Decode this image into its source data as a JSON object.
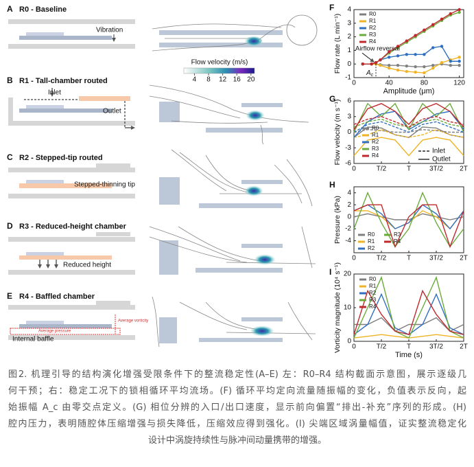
{
  "panels": [
    {
      "letter": "A",
      "title": "R0 - Baseline",
      "notes": [
        "Vibration"
      ]
    },
    {
      "letter": "B",
      "title": "R1 - Tall-chamber routed",
      "notes": [
        "Inlet",
        "Outlet"
      ]
    },
    {
      "letter": "C",
      "title": "R2 - Stepped-tip routed",
      "notes": [
        "Stepped-thinning tip"
      ]
    },
    {
      "letter": "D",
      "title": "R3 - Reduced-height chamber",
      "notes": [
        "Reduced height"
      ]
    },
    {
      "letter": "E",
      "title": "R4 - Baffled chamber",
      "notes": [
        "Average vorticity",
        "Average pressure",
        "Internal baffle"
      ]
    }
  ],
  "colorbar": {
    "label": "Flow velocity (m/s)",
    "lim": [
      1,
      21
    ],
    "ticks": [
      4,
      8,
      12,
      16,
      20
    ]
  },
  "chart_data": [
    {
      "type": "line",
      "panel": "F",
      "x_label": "Amplitude (μm)",
      "y_label": "Flow rate (L min⁻¹)",
      "x": [
        10,
        20,
        25,
        30,
        40,
        50,
        60,
        70,
        80,
        90,
        100,
        110,
        120
      ],
      "xlim": [
        0,
        125
      ],
      "xticks": [
        0,
        40,
        80,
        120
      ],
      "ylim": [
        -1,
        4
      ],
      "yticks": [
        -1,
        0,
        1,
        2,
        3,
        4
      ],
      "markers": true,
      "annotation": "Airflow reversal",
      "critical_amplitude": 25,
      "critical_symbol": "A",
      "critical_sub": "c",
      "series": [
        {
          "name": "R0",
          "color": "#7f7f7f",
          "values": [
            0,
            0,
            0,
            -0.05,
            -0.1,
            -0.1,
            -0.15,
            -0.2,
            -0.2,
            -0.1,
            0,
            -0.1,
            -0.1
          ]
        },
        {
          "name": "R1",
          "color": "#f0b323",
          "values": [
            0,
            0,
            0,
            -0.1,
            -0.3,
            -0.45,
            -0.55,
            -0.6,
            -0.65,
            -0.3,
            0.1,
            0.3,
            0.5
          ]
        },
        {
          "name": "R2",
          "color": "#2f6fc0",
          "values": [
            0,
            0,
            0.1,
            0.3,
            0.5,
            0.6,
            0.7,
            0.7,
            0.7,
            1.2,
            1.3,
            0.2,
            0.2
          ]
        },
        {
          "name": "R3",
          "color": "#6aab3c",
          "values": [
            0,
            0,
            0.1,
            0.3,
            0.8,
            1.2,
            1.6,
            2.0,
            2.4,
            2.8,
            3.2,
            3.6,
            3.8
          ]
        },
        {
          "name": "R4",
          "color": "#c0282d",
          "values": [
            0,
            0,
            0.1,
            0.3,
            0.9,
            1.3,
            1.7,
            2.1,
            2.5,
            2.9,
            3.3,
            3.7,
            4.0
          ]
        }
      ]
    },
    {
      "type": "line",
      "panel": "G",
      "y_label": "Flow velocity (m s⁻¹)",
      "x": [
        0,
        0.25,
        0.5,
        0.75,
        1,
        1.25,
        1.5,
        1.75,
        2
      ],
      "xlim": [
        0,
        2
      ],
      "xticks": [
        0,
        {
          "value": 0.5,
          "label": "T/2"
        },
        {
          "value": 1,
          "label": "T"
        },
        {
          "value": 1.5,
          "label": "3T/2"
        },
        {
          "value": 2,
          "label": "2T"
        }
      ],
      "ylim": [
        -6,
        6
      ],
      "yticks": [
        -6,
        -3,
        0,
        3,
        6
      ],
      "line_styles": [
        "Inlet",
        "Outlet"
      ],
      "series": [
        {
          "name": "R0",
          "color": "#7f7f7f",
          "values": [
            -1,
            1,
            0.8,
            -0.5,
            -1,
            1,
            0.8,
            -0.5,
            -1
          ],
          "inlet": [
            0,
            0.5,
            0.3,
            0,
            0,
            0.5,
            0.3,
            0,
            0
          ]
        },
        {
          "name": "R1",
          "color": "#f0b323",
          "values": [
            -4.5,
            -1.5,
            -1,
            -1.5,
            -4.5,
            -1.5,
            -1,
            -1.5,
            -4.5
          ],
          "inlet": [
            -1,
            -0.5,
            0.5,
            -0.5,
            -1,
            -0.5,
            0.5,
            -0.5,
            -1
          ]
        },
        {
          "name": "R2",
          "color": "#2f6fc0",
          "values": [
            -1,
            2,
            3.5,
            4,
            0.5,
            2,
            3.5,
            4,
            0.5
          ],
          "inlet": [
            0,
            1.5,
            2,
            1,
            0,
            1.5,
            2,
            1,
            0
          ]
        },
        {
          "name": "R3",
          "color": "#6aab3c",
          "values": [
            0,
            5.5,
            3,
            5.5,
            0.5,
            5.5,
            3,
            5.5,
            0
          ],
          "inlet": [
            1,
            2,
            2.5,
            1.5,
            1,
            2,
            2.5,
            1.5,
            1
          ]
        },
        {
          "name": "R4",
          "color": "#c0282d",
          "values": [
            0.5,
            4.5,
            5.5,
            4,
            1.5,
            4.5,
            5.5,
            4,
            1
          ],
          "inlet": [
            1.5,
            2.5,
            3,
            2,
            1,
            2.5,
            3,
            2,
            1.5
          ]
        }
      ]
    },
    {
      "type": "line",
      "panel": "H",
      "y_label": "Pressure (kPa)",
      "x": [
        0,
        0.25,
        0.5,
        0.75,
        1,
        1.25,
        1.5,
        1.75,
        2
      ],
      "xlim": [
        0,
        2
      ],
      "xticks": [
        0,
        {
          "value": 0.5,
          "label": "T/2"
        },
        {
          "value": 1,
          "label": "T"
        },
        {
          "value": 1.5,
          "label": "3T/2"
        },
        {
          "value": 2,
          "label": "2T"
        }
      ],
      "ylim": [
        -6,
        5
      ],
      "yticks": [
        -4,
        -2,
        0,
        2,
        4
      ],
      "series": [
        {
          "name": "R0",
          "color": "#7f7f7f",
          "values": [
            0,
            0.5,
            0,
            -0.5,
            -0.5,
            0.5,
            0,
            -0.5,
            0
          ]
        },
        {
          "name": "R1",
          "color": "#f0b323",
          "values": [
            1,
            1,
            0,
            -2,
            -1,
            1,
            0,
            -2,
            1
          ]
        },
        {
          "name": "R2",
          "color": "#2f6fc0",
          "values": [
            1,
            2,
            0.5,
            -2,
            -1,
            2,
            0.5,
            -2,
            1
          ]
        },
        {
          "name": "R3",
          "color": "#6aab3c",
          "values": [
            -2,
            4,
            -1,
            -5,
            -2,
            4,
            -1,
            -5,
            -2
          ]
        },
        {
          "name": "R4",
          "color": "#c0282d",
          "values": [
            1,
            2,
            2,
            -5,
            0,
            2,
            2,
            -5,
            1
          ]
        }
      ]
    },
    {
      "type": "line",
      "panel": "I",
      "x_label": "Time (s)",
      "y_label": "Vorticity magnitude (10⁴ s⁻¹)",
      "x": [
        0,
        0.25,
        0.5,
        0.75,
        1,
        1.25,
        1.5,
        1.75,
        2
      ],
      "xlim": [
        0,
        2
      ],
      "xticks": [
        0,
        {
          "value": 0.5,
          "label": "T/2"
        },
        {
          "value": 1,
          "label": "T"
        },
        {
          "value": 1.5,
          "label": "3T/2"
        },
        {
          "value": 2,
          "label": "2T"
        }
      ],
      "ylim": [
        0,
        20
      ],
      "yticks": [
        0,
        10,
        20
      ],
      "series": [
        {
          "name": "R0",
          "color": "#7f7f7f",
          "values": [
            5,
            5,
            7,
            3,
            5,
            5,
            7,
            3,
            5
          ]
        },
        {
          "name": "R1",
          "color": "#f0b323",
          "values": [
            1,
            1.5,
            2,
            1.5,
            1,
            1.5,
            2,
            1.5,
            1
          ]
        },
        {
          "name": "R2",
          "color": "#2f6fc0",
          "values": [
            2,
            5,
            14,
            4,
            2,
            5,
            14,
            4,
            2
          ]
        },
        {
          "name": "R3",
          "color": "#6aab3c",
          "values": [
            1,
            10,
            19,
            3,
            1,
            10,
            19,
            3,
            1
          ]
        },
        {
          "name": "R4",
          "color": "#c0282d",
          "values": [
            2,
            15,
            8,
            3,
            2,
            15,
            8,
            3,
            2
          ]
        }
      ]
    }
  ],
  "caption": [
    "图2. 机理引导的结构演化增强受限条件下的整流稳定性(A–E) 左：R0–R4 结构截面示意图，展示逐级几",
    "何干预；右：稳定工况下的锁相循环平均流场。(F) 循环平均定向流量随振幅的变化，负值表示反向，起",
    "始振幅 A_c 由零交点定义。(G) 相位分辨的入口/出口速度，显示前向偏置“排出-补充”序列的形成。(H)",
    "腔内压力，表明随腔体压缩增强与损失降低，压缩效应得到强化。(I) 尖端区域涡量幅值，证实整流稳定化",
    "设计中涡旋持续性与脉冲间动量携带的增强。"
  ]
}
